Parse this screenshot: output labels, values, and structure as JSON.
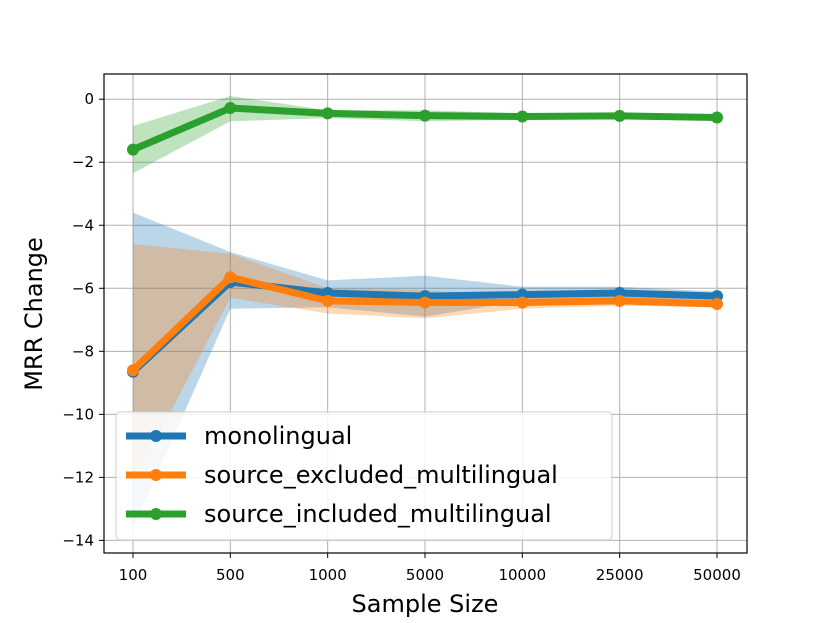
{
  "chart_data": {
    "type": "line",
    "xlabel": "Sample Size",
    "ylabel": "MRR Change",
    "categories": [
      "100",
      "500",
      "1000",
      "5000",
      "10000",
      "25000",
      "50000"
    ],
    "ylim": [
      -14.4,
      0.8
    ],
    "yticks": [
      0,
      -2,
      -4,
      -6,
      -8,
      -10,
      -12,
      -14
    ],
    "ytick_labels": [
      "0",
      "−2",
      "−4",
      "−6",
      "−8",
      "−10",
      "−12",
      "−14"
    ],
    "grid": true,
    "legend_position": "lower-left",
    "series": [
      {
        "name": "monolingual",
        "color": "#1f77b4",
        "values": [
          -8.65,
          -5.8,
          -6.15,
          -6.25,
          -6.2,
          -6.15,
          -6.25
        ],
        "band_upper": [
          -3.6,
          -4.85,
          -5.75,
          -5.6,
          -5.95,
          -5.95,
          -6.1
        ],
        "band_lower": [
          -13.6,
          -6.65,
          -6.6,
          -6.9,
          -6.4,
          -6.35,
          -6.4
        ]
      },
      {
        "name": "source_excluded_multilingual",
        "color": "#ff7f0e",
        "values": [
          -8.6,
          -5.65,
          -6.4,
          -6.45,
          -6.45,
          -6.4,
          -6.5
        ],
        "band_upper": [
          -4.6,
          -4.9,
          -6.0,
          -6.05,
          -6.3,
          -6.25,
          -6.35
        ],
        "band_lower": [
          -12.2,
          -6.3,
          -6.8,
          -6.95,
          -6.65,
          -6.55,
          -6.6
        ]
      },
      {
        "name": "source_included_multilingual",
        "color": "#2ca02c",
        "values": [
          -1.6,
          -0.28,
          -0.45,
          -0.52,
          -0.55,
          -0.53,
          -0.58
        ],
        "band_upper": [
          -0.85,
          0.1,
          -0.35,
          -0.35,
          -0.45,
          -0.45,
          -0.5
        ],
        "band_lower": [
          -2.35,
          -0.7,
          -0.6,
          -0.7,
          -0.65,
          -0.62,
          -0.68
        ]
      }
    ]
  }
}
